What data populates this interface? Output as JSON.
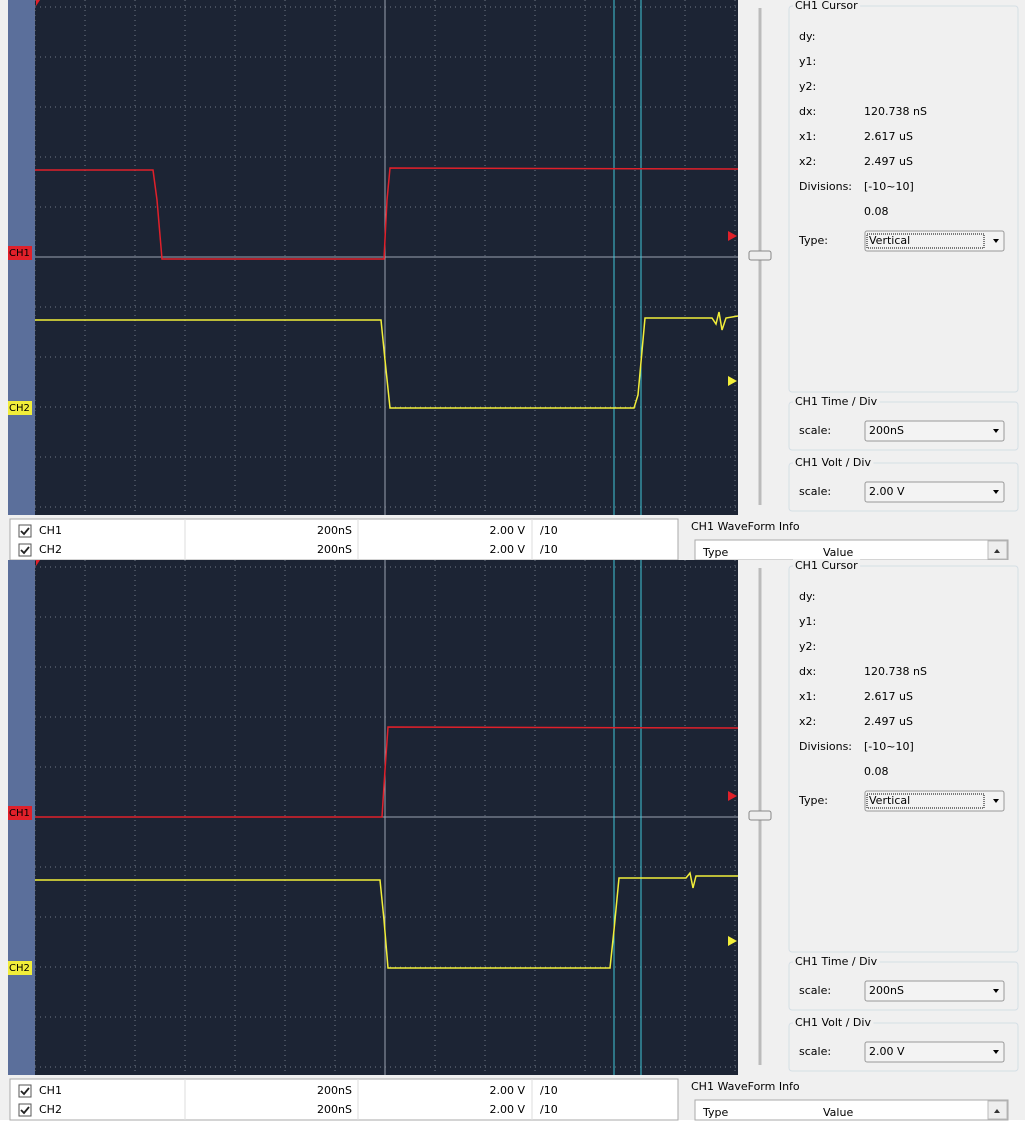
{
  "panels": [
    {
      "scope_labels": [
        "CH1",
        "CH2"
      ],
      "cursor": {
        "title": "CH1 Cursor",
        "fields": [
          {
            "label": "dy:"
          },
          {
            "label": "y1:"
          },
          {
            "label": "y2:"
          },
          {
            "label": "dx:",
            "value": "120.738 nS"
          },
          {
            "label": "x1:",
            "value": "2.617 uS"
          },
          {
            "label": "x2:",
            "value": "2.497 uS"
          },
          {
            "label": "Divisions:",
            "value": "[-10~10]"
          },
          {
            "value": "0.08"
          }
        ],
        "type_label": "Type:",
        "type_value": "Vertical"
      },
      "time_div": {
        "title": "CH1 Time / Div",
        "label": "scale:",
        "value": "200nS"
      },
      "volt_div": {
        "title": "CH1 Volt / Div",
        "label": "scale:",
        "value": "2.00 V"
      },
      "channels": [
        {
          "name": "CH1",
          "time": "200nS",
          "volt": "2.00 V",
          "probe": "/10"
        },
        {
          "name": "CH2",
          "time": "200nS",
          "volt": "2.00 V",
          "probe": "/10"
        }
      ],
      "waveform_info": {
        "title": "CH1 WaveForm Info",
        "columns": [
          "Type",
          "Value"
        ]
      }
    },
    {
      "scope_labels": [
        "CH1",
        "CH2"
      ],
      "cursor": {
        "title": "CH1 Cursor",
        "fields": [
          {
            "label": "dy:"
          },
          {
            "label": "y1:"
          },
          {
            "label": "y2:"
          },
          {
            "label": "dx:",
            "value": "120.738 nS"
          },
          {
            "label": "x1:",
            "value": "2.617 uS"
          },
          {
            "label": "x2:",
            "value": "2.497 uS"
          },
          {
            "label": "Divisions:",
            "value": "[-10~10]"
          },
          {
            "value": "0.08"
          }
        ],
        "type_label": "Type:",
        "type_value": "Vertical"
      },
      "time_div": {
        "title": "CH1 Time / Div",
        "label": "scale:",
        "value": "200nS"
      },
      "volt_div": {
        "title": "CH1 Volt / Div",
        "label": "scale:",
        "value": "2.00 V"
      },
      "channels": [
        {
          "name": "CH1",
          "time": "200nS",
          "volt": "2.00 V",
          "probe": "/10"
        },
        {
          "name": "CH2",
          "time": "200nS",
          "volt": "2.00 V",
          "probe": "/10"
        }
      ],
      "waveform_info": {
        "title": "CH1 WaveForm Info",
        "columns": [
          "Type",
          "Value"
        ]
      }
    }
  ]
}
